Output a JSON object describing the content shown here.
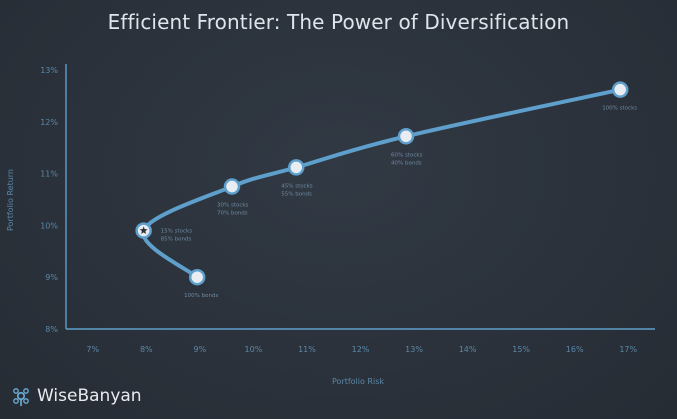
{
  "chart_data": {
    "type": "line",
    "title": "Efficient Frontier: The Power of Diversification",
    "xlabel": "Portfolio Risk",
    "ylabel": "Portfolio Return",
    "x_ticks": [
      "7%",
      "8%",
      "9%",
      "10%",
      "11%",
      "12%",
      "13%",
      "14%",
      "15%",
      "16%",
      "17%"
    ],
    "y_ticks": [
      "8%",
      "9%",
      "10%",
      "11%",
      "12%",
      "13%"
    ],
    "xlim": [
      6.5,
      17.5
    ],
    "ylim": [
      8,
      13
    ],
    "grid": false,
    "series": [
      {
        "points": [
          {
            "x": 8.95,
            "y": 9.0,
            "label": [
              "100% bonds"
            ]
          },
          {
            "x": 7.95,
            "y": 9.9,
            "label": [
              "15% stocks",
              "85% bonds"
            ],
            "marker": "star"
          },
          {
            "x": 9.6,
            "y": 10.75,
            "label": [
              "30% stocks",
              "70% bonds"
            ]
          },
          {
            "x": 10.8,
            "y": 11.12,
            "label": [
              "45% stocks",
              "55% bonds"
            ]
          },
          {
            "x": 12.85,
            "y": 11.72,
            "label": [
              "60% stocks",
              "40% bonds"
            ]
          },
          {
            "x": 16.85,
            "y": 12.62,
            "label": [
              "100% stocks"
            ]
          }
        ]
      }
    ]
  },
  "colors": {
    "line": "#5e9fcb",
    "axis": "#5e9fcb",
    "tick_text": "#5b88a8",
    "label_text": "#6e8aa3",
    "marker_fill": "#e9edf1",
    "marker_stroke": "#5e9fcb",
    "star": "#2b323b"
  },
  "brand": {
    "name": "WiseBanyan",
    "icon": "wisebanyan-tree-logo"
  }
}
